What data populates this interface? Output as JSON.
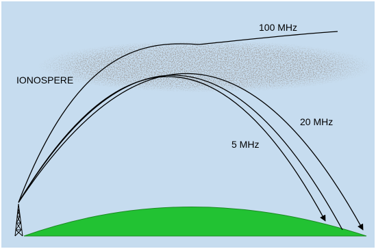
{
  "labels": {
    "ionosphere": "IONOSPERE",
    "f100": "100 MHz",
    "f20": "20 MHz",
    "f5": "5 MHz"
  },
  "colors": {
    "background": "#c6dcef",
    "ground": "#22c233",
    "ionosphere_speckle": "#7a7a7a",
    "rays": "#000000"
  },
  "icons": {
    "transmitter": "radio-tower-icon"
  }
}
